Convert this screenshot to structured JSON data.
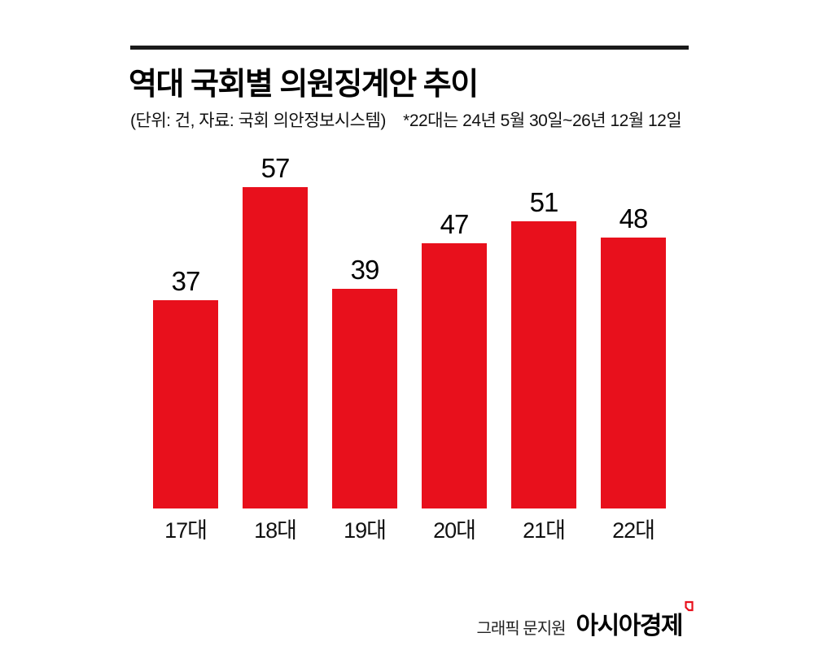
{
  "header": {
    "title": "역대 국회별 의원징계안 추이",
    "subtitle_unit_source": "(단위: 건, 자료: 국회 의안정보시스템)",
    "subtitle_note": "*22대는 24년 5월 30일~26년 12월 12일"
  },
  "chart_data": {
    "type": "bar",
    "title": "역대 국회별 의원징계안 추이",
    "categories": [
      "17대",
      "18대",
      "19대",
      "20대",
      "21대",
      "22대"
    ],
    "values": [
      37,
      57,
      39,
      47,
      51,
      48
    ],
    "unit": "건",
    "source": "국회 의안정보시스템",
    "note": "*22대는 24년 5월 30일~26년 12월 12일",
    "xlabel": "",
    "ylabel": "건",
    "ylim": [
      0,
      57
    ],
    "grid": false,
    "legend": "none",
    "value_labels": true,
    "bar_color": "#e8101c"
  },
  "footer": {
    "credit": "그래픽 문지원",
    "brand": "아시아경제"
  },
  "colors": {
    "bar": "#e8101c",
    "text": "#000000",
    "rule": "#1a1a1a",
    "background": "#ffffff"
  }
}
